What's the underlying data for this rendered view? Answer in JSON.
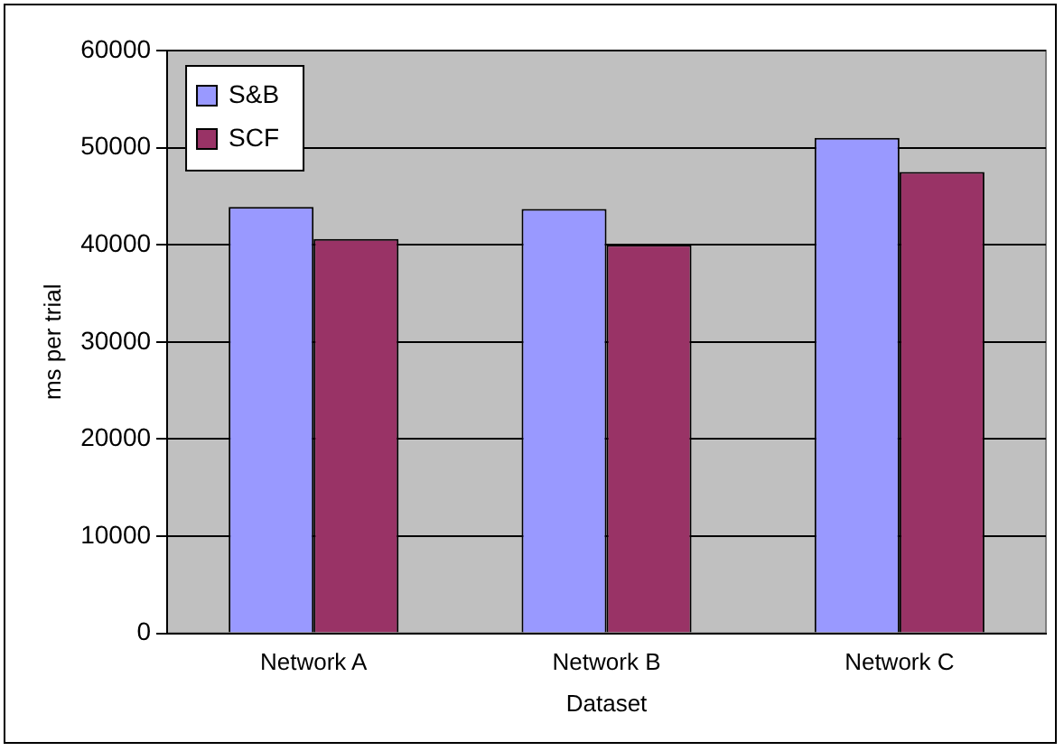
{
  "chart_data": {
    "type": "bar",
    "xlabel": "Dataset",
    "ylabel": "ms per trial",
    "categories": [
      "Network A",
      "Network B",
      "Network C"
    ],
    "series": [
      {
        "name": "S&B",
        "color": "#9999ff",
        "values": [
          43900,
          43700,
          51000
        ]
      },
      {
        "name": "SCF",
        "color": "#993366",
        "values": [
          40600,
          40000,
          47500
        ]
      }
    ],
    "ylim": [
      0,
      60000
    ],
    "yticks": [
      0,
      10000,
      20000,
      30000,
      40000,
      50000,
      60000
    ],
    "grid": "y",
    "legend": "top left"
  }
}
